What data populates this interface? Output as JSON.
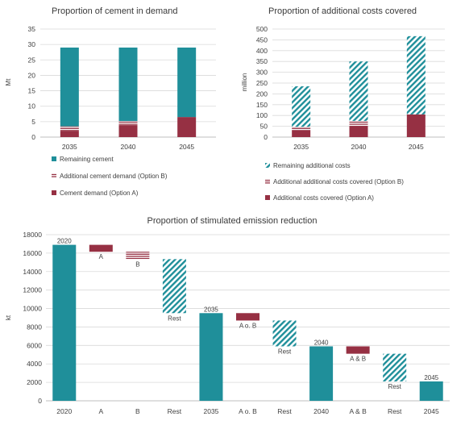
{
  "colors": {
    "remaining": "#1f8f9a",
    "option_a": "#963043",
    "option_b": "#963043"
  },
  "chart_data": [
    {
      "type": "bar",
      "stacked": true,
      "title": "Proportion of cement  in demand",
      "ylabel": "Mt",
      "ylim": [
        0,
        35
      ],
      "yticks": [
        "0",
        "5",
        "10",
        "15",
        "20",
        "25",
        "30",
        "35"
      ],
      "categories": [
        "2035",
        "2040",
        "2045"
      ],
      "series": [
        {
          "name": "Cement demand (Option A)",
          "pattern": "solid-a",
          "values": [
            2.0,
            3.9,
            6.5
          ]
        },
        {
          "name": "Additional cement demand (Option B)",
          "pattern": "lines-b",
          "values": [
            1.5,
            1.3,
            0
          ]
        },
        {
          "name": "Remaining cement",
          "pattern": "solid-rem",
          "values": [
            25.5,
            23.8,
            22.5
          ]
        }
      ],
      "legend_order": [
        2,
        1,
        0
      ]
    },
    {
      "type": "bar",
      "stacked": true,
      "title": "Proportion of additional costs covered",
      "ylabel": "million",
      "ylim": [
        0,
        500
      ],
      "yticks": [
        "0",
        "50",
        "100",
        "150",
        "200",
        "250",
        "300",
        "350",
        "400",
        "450",
        "500"
      ],
      "categories": [
        "2035",
        "2040",
        "2045"
      ],
      "series": [
        {
          "name": "Additional costs covered (Option A)",
          "pattern": "solid-a",
          "values": [
            30,
            50,
            105
          ]
        },
        {
          "name": "Additional additional costs covered (Option B)",
          "pattern": "lines-b",
          "values": [
            18,
            25,
            0
          ]
        },
        {
          "name": "Remaining additional costs",
          "pattern": "hatch-rem",
          "values": [
            187,
            275,
            362
          ]
        }
      ],
      "legend_order": [
        2,
        1,
        0
      ]
    },
    {
      "type": "waterfall",
      "title": "Proportion of stimulated emission reduction",
      "ylabel": "kt",
      "ylim": [
        0,
        18000
      ],
      "yticks": [
        "0",
        "2000",
        "4000",
        "6000",
        "8000",
        "10000",
        "12000",
        "14000",
        "16000",
        "18000"
      ],
      "bars": [
        {
          "category": "2020",
          "kind": "total",
          "low": 0,
          "high": 16900,
          "label": "2020"
        },
        {
          "category": "A",
          "kind": "step-a",
          "low": 16150,
          "high": 16900,
          "label": "A"
        },
        {
          "category": "B",
          "kind": "step-b",
          "low": 15350,
          "high": 16150,
          "label": "B"
        },
        {
          "category": "Rest",
          "kind": "step-rest",
          "low": 9500,
          "high": 15350,
          "label": "Rest"
        },
        {
          "category": "2035",
          "kind": "total",
          "low": 0,
          "high": 9500,
          "label": "2035"
        },
        {
          "category": "A o. B",
          "kind": "step-a",
          "low": 8700,
          "high": 9500,
          "label": "A o. B"
        },
        {
          "category": "Rest",
          "kind": "step-rest",
          "low": 5900,
          "high": 8700,
          "label": "Rest"
        },
        {
          "category": "2040",
          "kind": "total",
          "low": 0,
          "high": 5900,
          "label": "2040"
        },
        {
          "category": "A & B",
          "kind": "step-a",
          "low": 5100,
          "high": 5900,
          "label": "A & B"
        },
        {
          "category": "Rest",
          "kind": "step-rest",
          "low": 2100,
          "high": 5100,
          "label": "Rest"
        },
        {
          "category": "2045",
          "kind": "total",
          "low": 0,
          "high": 2100,
          "label": "2045"
        }
      ]
    }
  ]
}
